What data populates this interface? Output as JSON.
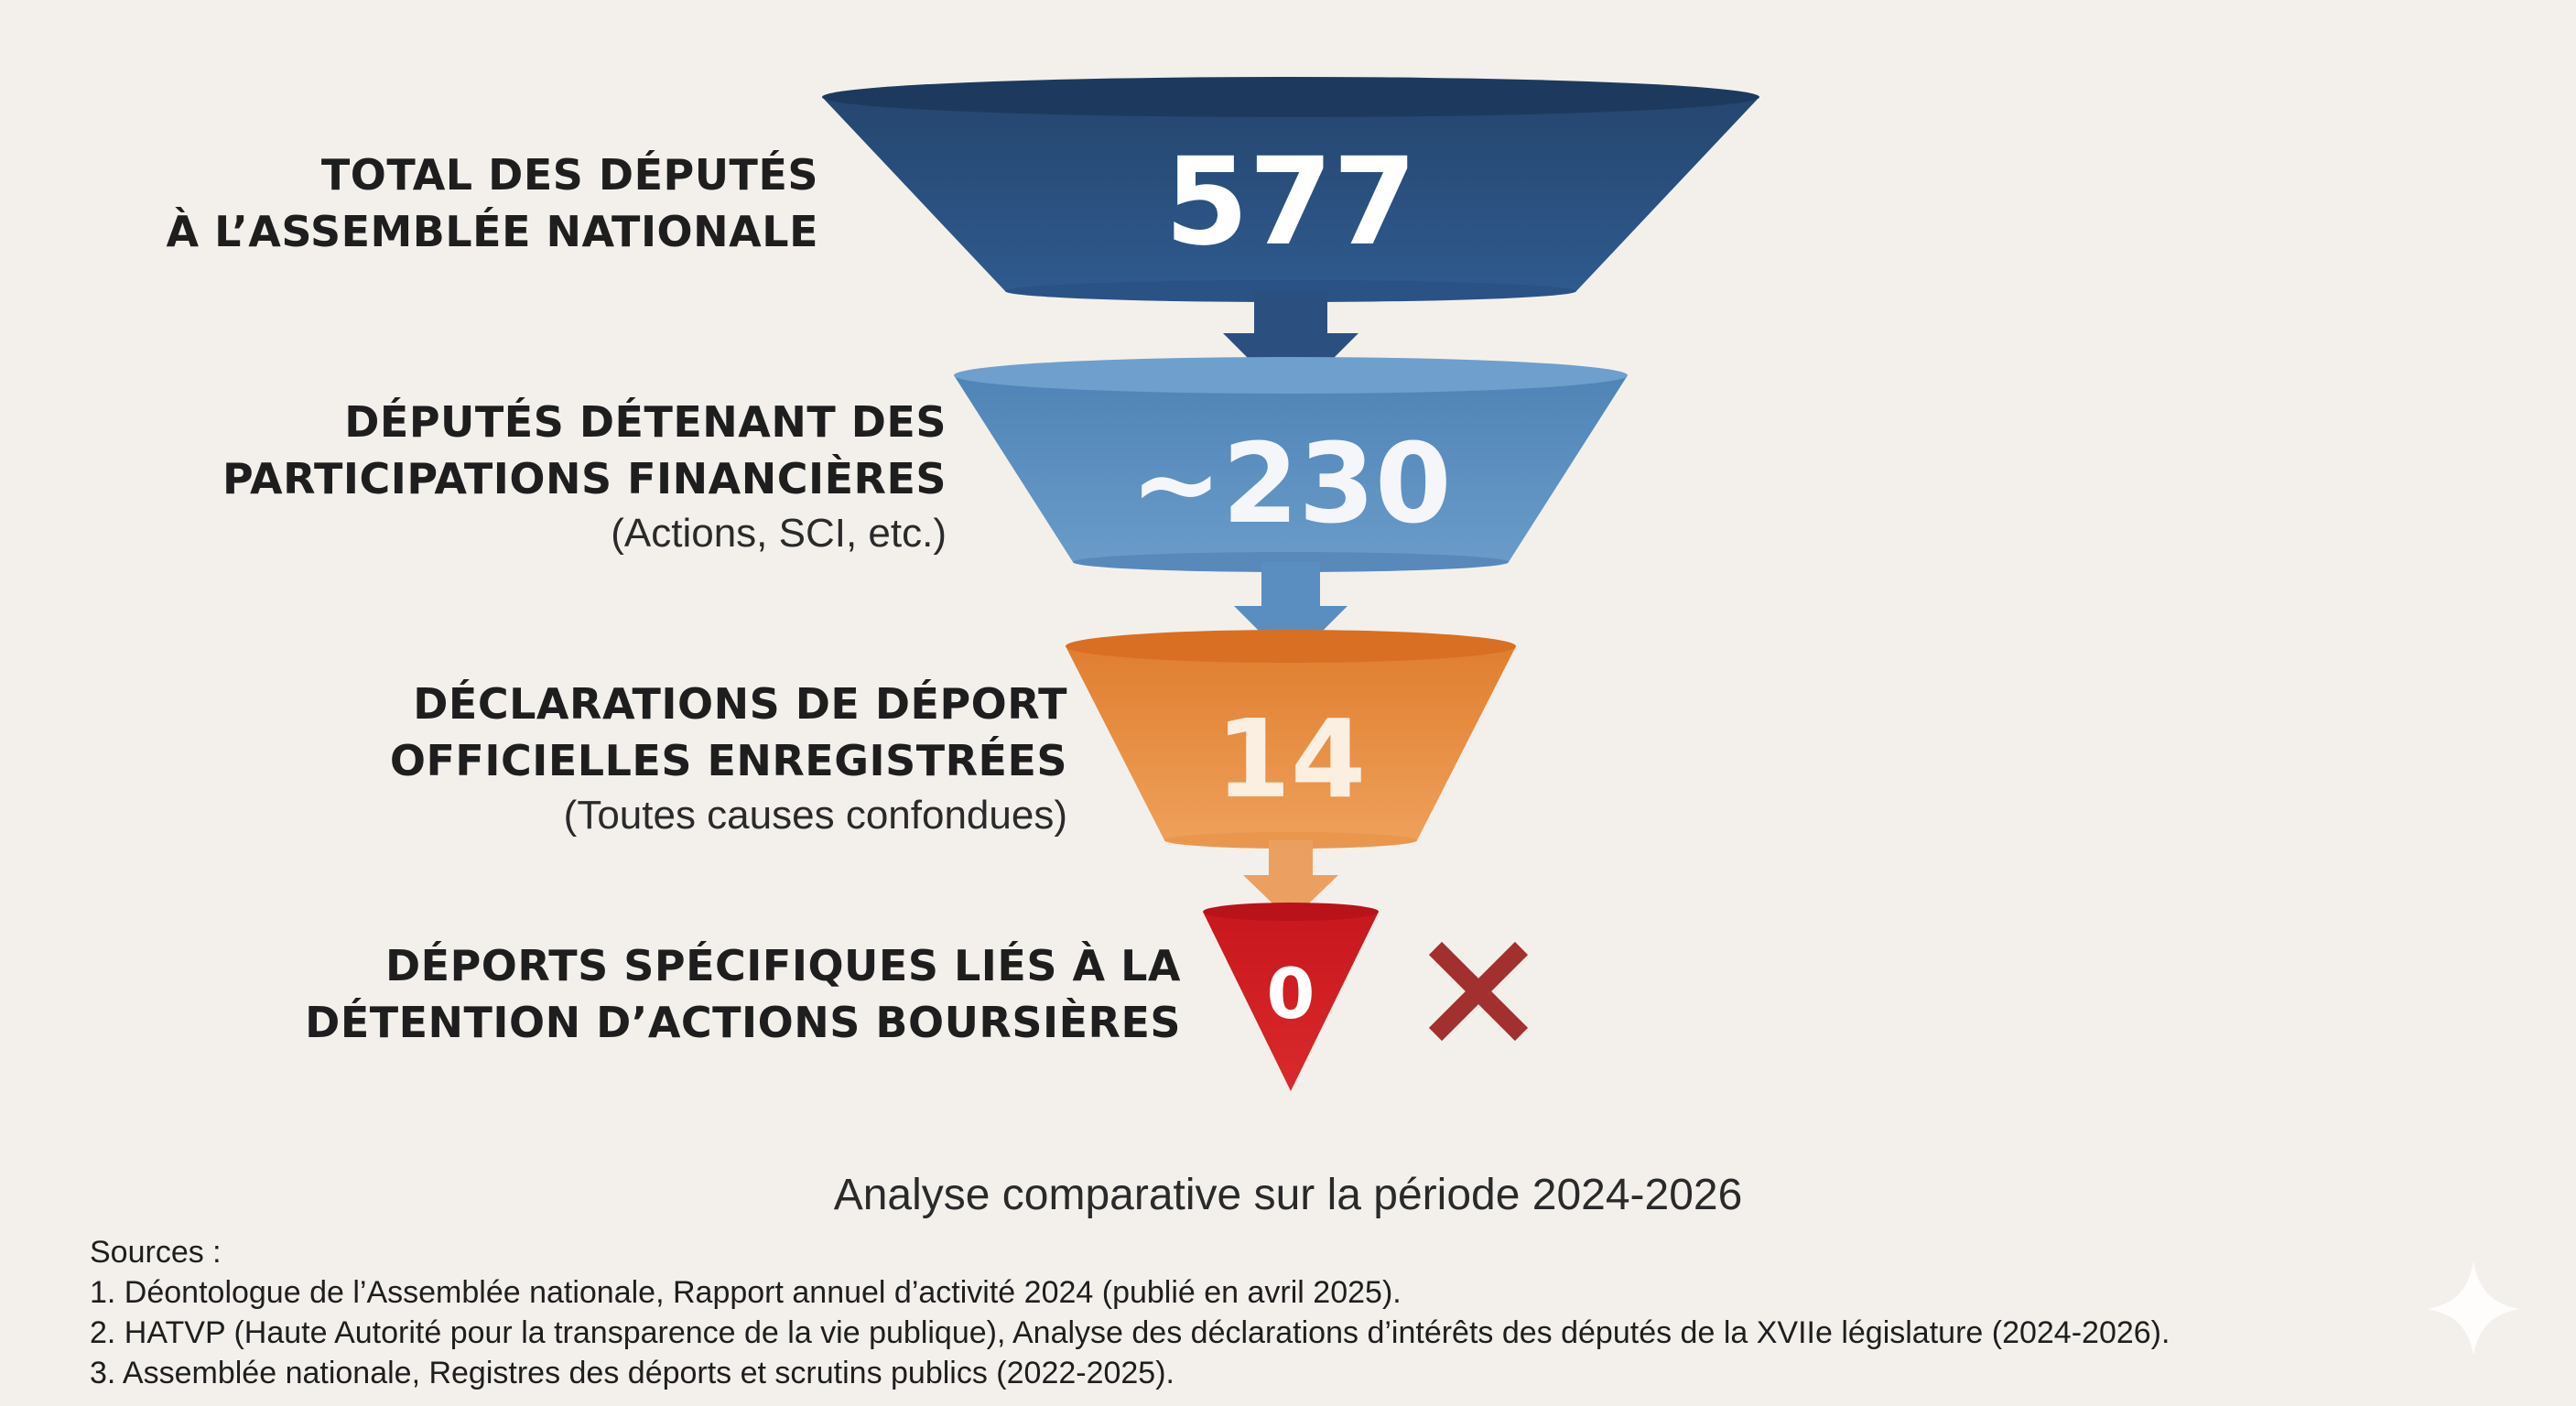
{
  "stages": [
    {
      "value": "577",
      "label_lines": [
        "TOTAL DES DÉPUTÉS",
        "À L’ASSEMBLÉE NATIONALE"
      ],
      "sub": "",
      "color": "#2f578a"
    },
    {
      "value": "~230",
      "label_lines": [
        "DÉPUTÉS DÉTENANT DES",
        "PARTICIPATIONS FINANCIÈRES"
      ],
      "sub": "(Actions, SCI, etc.)",
      "color": "#5b8fc0"
    },
    {
      "value": "14",
      "label_lines": [
        "DÉCLARATIONS DE DÉPORT",
        "OFFICIELLES ENREGISTRÉES"
      ],
      "sub": "(Toutes causes confondues)",
      "color": "#e8954a"
    },
    {
      "value": "0",
      "label_lines": [
        "DÉPORTS SPÉCIFIQUES LIÉS À LA",
        "DÉTENTION D’ACTIONS BOURSIÈRES"
      ],
      "sub": "",
      "color": "#cf1f23"
    }
  ],
  "cross_color": "#a2302f",
  "caption": "Analyse comparative sur la période 2024-2026",
  "sources": {
    "heading": "Sources :",
    "items": [
      "1. Déontologue de l’Assemblée nationale, Rapport annuel d’activité 2024 (publié en avril 2025).",
      "2. HATVP (Haute Autorité pour la transparence de la vie publique), Analyse des déclarations d’intérêts des députés de la XVIIe législature (2024-2026).",
      "3. Assemblée nationale, Registres des déports et scrutins publics (2022-2025)."
    ]
  }
}
